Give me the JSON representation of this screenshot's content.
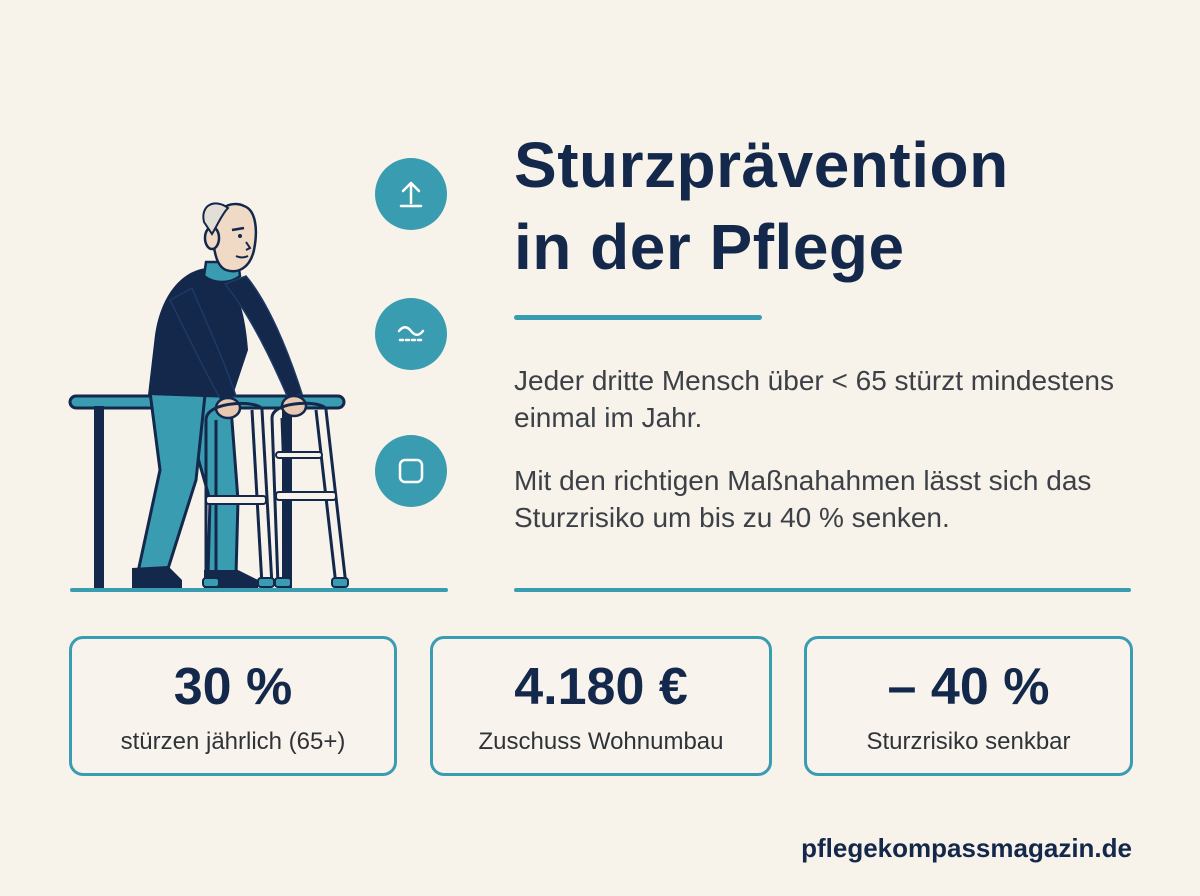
{
  "title": {
    "line1": "Sturzprävention",
    "line2": "in der Pflege"
  },
  "paragraphs": [
    "Jeder dritte Mensch über < 65 stürzt mindestens einmal im Jahr.",
    "Mit den richtigen Maßnahahmen lässt sich das Sturzrisiko um bis zu 40 % senken."
  ],
  "stats": [
    {
      "value": "30 %",
      "label": "stürzen jährlich (65+)"
    },
    {
      "value": "4.180 €",
      "label": "Zuschuss Wohnumbau"
    },
    {
      "value": "– 40 %",
      "label": "Sturzrisiko senkbar"
    }
  ],
  "icons": [
    {
      "name": "arrow-up-icon"
    },
    {
      "name": "wave-icon"
    },
    {
      "name": "square-icon"
    }
  ],
  "illustration": {
    "subject": "elderly-man-with-walker"
  },
  "footer": {
    "website": "pflegekompassmagazin.de"
  },
  "colors": {
    "background": "#f7f2ea",
    "navy": "#13284b",
    "teal": "#3a9cb0",
    "text": "#3d4147"
  }
}
